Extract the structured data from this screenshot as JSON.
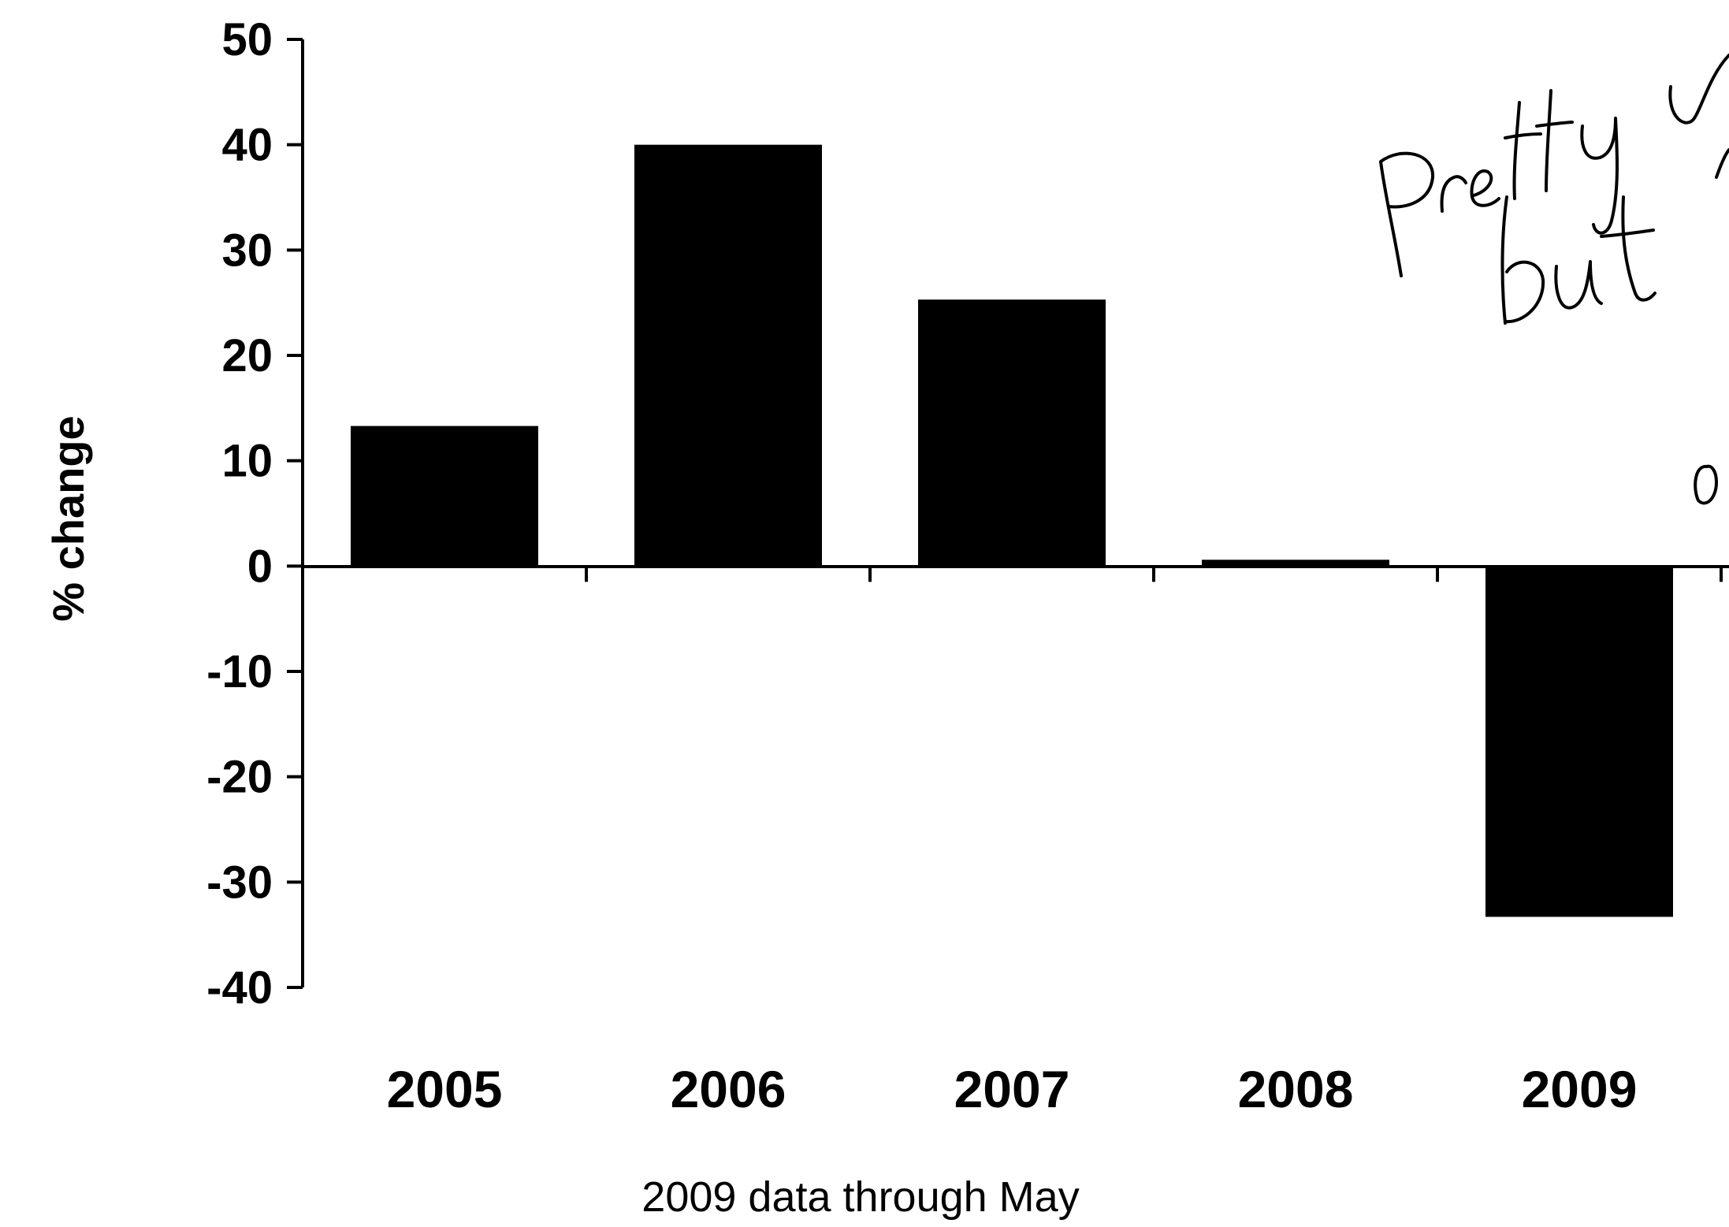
{
  "chart_data": {
    "type": "bar",
    "categories": [
      "2005",
      "2006",
      "2007",
      "2008",
      "2009"
    ],
    "values": [
      13.3,
      40,
      25.3,
      0.6,
      -33.3
    ],
    "ylabel": "% change",
    "xlabel": "",
    "ylim": [
      -40,
      50
    ],
    "yticks": [
      50,
      40,
      30,
      20,
      10,
      0,
      -10,
      -20,
      -30,
      -40
    ],
    "ytick_labels": [
      "50",
      "40",
      "30",
      "20",
      "10",
      "0",
      "-10",
      "-20",
      "-30",
      "-40"
    ],
    "footnote": "2009 data through May",
    "grid": false,
    "legend": "none",
    "bar_color": "#000000",
    "annotation": "Pretty ... but ... o (handwritten, cropped at right edge)"
  }
}
